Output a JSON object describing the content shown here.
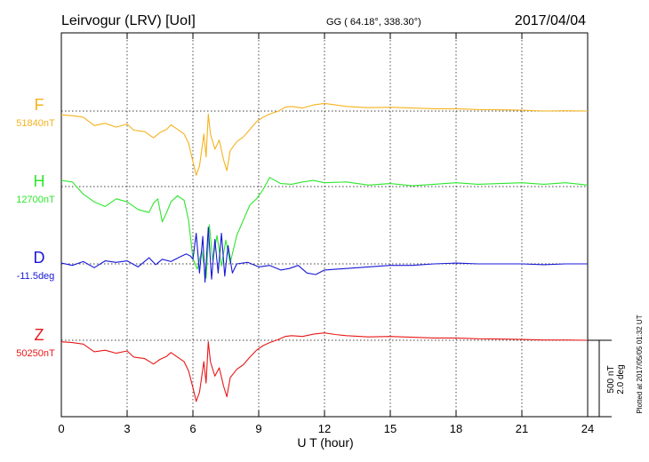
{
  "header": {
    "station": "Leirvogur (LRV)  [UoI]",
    "coords": "GG ( 64.18°, 338.30°)",
    "date": "2017/04/04"
  },
  "footnote": "Plotted at 2017/05/05 01:32 UT",
  "scale": {
    "nt": "500 nT",
    "deg": "2.0 deg"
  },
  "chart_data": {
    "type": "line",
    "xlabel": "U T (hour)",
    "xlim": [
      0,
      24
    ],
    "xticks": [
      0,
      3,
      6,
      9,
      12,
      15,
      18,
      21,
      24
    ],
    "grid": true,
    "series": [
      {
        "name": "F",
        "baseline_label": "51840nT",
        "color": "#f5b21e",
        "points": [
          [
            0,
            -25
          ],
          [
            0.5,
            -30
          ],
          [
            1,
            -40
          ],
          [
            1.5,
            -95
          ],
          [
            2,
            -80
          ],
          [
            2.5,
            -105
          ],
          [
            3,
            -85
          ],
          [
            3.3,
            -125
          ],
          [
            3.8,
            -135
          ],
          [
            4.2,
            -175
          ],
          [
            4.5,
            -140
          ],
          [
            4.8,
            -120
          ],
          [
            5,
            -90
          ],
          [
            5.3,
            -120
          ],
          [
            5.6,
            -150
          ],
          [
            5.8,
            -210
          ],
          [
            6,
            -330
          ],
          [
            6.15,
            -420
          ],
          [
            6.3,
            -360
          ],
          [
            6.5,
            -150
          ],
          [
            6.6,
            -300
          ],
          [
            6.7,
            -20
          ],
          [
            6.8,
            -150
          ],
          [
            7,
            -250
          ],
          [
            7.2,
            -190
          ],
          [
            7.4,
            -320
          ],
          [
            7.55,
            -390
          ],
          [
            7.7,
            -260
          ],
          [
            8,
            -200
          ],
          [
            8.3,
            -170
          ],
          [
            8.6,
            -120
          ],
          [
            8.9,
            -70
          ],
          [
            9.2,
            -40
          ],
          [
            9.5,
            -20
          ],
          [
            9.9,
            0
          ],
          [
            10.2,
            25
          ],
          [
            10.5,
            30
          ],
          [
            11,
            20
          ],
          [
            11.5,
            40
          ],
          [
            12,
            50
          ],
          [
            12.5,
            40
          ],
          [
            13,
            30
          ],
          [
            14,
            22
          ],
          [
            15,
            25
          ],
          [
            16,
            20
          ],
          [
            17,
            15
          ],
          [
            18,
            15
          ],
          [
            19,
            10
          ],
          [
            20,
            8
          ],
          [
            21,
            5
          ],
          [
            22,
            0
          ],
          [
            23,
            2
          ],
          [
            24,
            0
          ]
        ]
      },
      {
        "name": "H",
        "baseline_label": "12700nT",
        "color": "#2ee62e",
        "points": [
          [
            0,
            40
          ],
          [
            0.5,
            30
          ],
          [
            1,
            -50
          ],
          [
            1.5,
            -100
          ],
          [
            2,
            -130
          ],
          [
            2.5,
            -80
          ],
          [
            3,
            -100
          ],
          [
            3.5,
            -150
          ],
          [
            4,
            -170
          ],
          [
            4.2,
            -110
          ],
          [
            4.4,
            -80
          ],
          [
            4.6,
            -230
          ],
          [
            4.8,
            -170
          ],
          [
            5,
            -100
          ],
          [
            5.3,
            -60
          ],
          [
            5.6,
            -90
          ],
          [
            5.8,
            -220
          ],
          [
            6,
            -470
          ],
          [
            6.2,
            -540
          ],
          [
            6.4,
            -420
          ],
          [
            6.6,
            -600
          ],
          [
            6.75,
            -250
          ],
          [
            6.9,
            -480
          ],
          [
            7.1,
            -320
          ],
          [
            7.3,
            -520
          ],
          [
            7.5,
            -350
          ],
          [
            7.7,
            -500
          ],
          [
            8,
            -320
          ],
          [
            8.3,
            -220
          ],
          [
            8.6,
            -120
          ],
          [
            8.9,
            -80
          ],
          [
            9.2,
            -20
          ],
          [
            9.5,
            60
          ],
          [
            10,
            20
          ],
          [
            10.5,
            15
          ],
          [
            11,
            30
          ],
          [
            11.5,
            40
          ],
          [
            12,
            25
          ],
          [
            13,
            30
          ],
          [
            14,
            10
          ],
          [
            15,
            20
          ],
          [
            16,
            5
          ],
          [
            17,
            15
          ],
          [
            18,
            25
          ],
          [
            19,
            15
          ],
          [
            20,
            20
          ],
          [
            21,
            25
          ],
          [
            22,
            15
          ],
          [
            23,
            25
          ],
          [
            24,
            10
          ]
        ]
      },
      {
        "name": "D",
        "baseline_label": "-11.5deg",
        "color": "#1818d8",
        "points": [
          [
            0,
            5
          ],
          [
            0.5,
            -10
          ],
          [
            1,
            15
          ],
          [
            1.5,
            -25
          ],
          [
            2,
            20
          ],
          [
            2.5,
            10
          ],
          [
            3,
            20
          ],
          [
            3.5,
            -20
          ],
          [
            4,
            40
          ],
          [
            4.3,
            -5
          ],
          [
            4.6,
            30
          ],
          [
            5,
            15
          ],
          [
            5.4,
            45
          ],
          [
            5.7,
            65
          ],
          [
            5.9,
            50
          ],
          [
            6,
            30
          ],
          [
            6.15,
            200
          ],
          [
            6.3,
            -60
          ],
          [
            6.45,
            180
          ],
          [
            6.55,
            -120
          ],
          [
            6.7,
            240
          ],
          [
            6.85,
            -100
          ],
          [
            7,
            160
          ],
          [
            7.15,
            -60
          ],
          [
            7.3,
            200
          ],
          [
            7.45,
            -80
          ],
          [
            7.6,
            120
          ],
          [
            7.8,
            -60
          ],
          [
            8,
            0
          ],
          [
            8.5,
            10
          ],
          [
            9,
            -20
          ],
          [
            9.5,
            -10
          ],
          [
            10,
            -40
          ],
          [
            10.4,
            -30
          ],
          [
            10.8,
            -10
          ],
          [
            11.2,
            -60
          ],
          [
            11.6,
            -70
          ],
          [
            12,
            -40
          ],
          [
            13,
            -30
          ],
          [
            14,
            -20
          ],
          [
            15,
            -10
          ],
          [
            16,
            -10
          ],
          [
            17,
            0
          ],
          [
            18,
            5
          ],
          [
            19,
            0
          ],
          [
            20,
            0
          ],
          [
            21,
            0
          ],
          [
            22,
            -5
          ],
          [
            23,
            0
          ],
          [
            24,
            0
          ]
        ]
      },
      {
        "name": "Z",
        "baseline_label": "50250nT",
        "color": "#e81818",
        "points": [
          [
            0,
            -10
          ],
          [
            0.5,
            -15
          ],
          [
            1,
            -25
          ],
          [
            1.5,
            -75
          ],
          [
            2,
            -65
          ],
          [
            2.5,
            -85
          ],
          [
            3,
            -70
          ],
          [
            3.3,
            -110
          ],
          [
            3.8,
            -120
          ],
          [
            4.2,
            -155
          ],
          [
            4.5,
            -125
          ],
          [
            4.8,
            -105
          ],
          [
            5,
            -80
          ],
          [
            5.3,
            -110
          ],
          [
            5.6,
            -140
          ],
          [
            5.8,
            -200
          ],
          [
            6,
            -310
          ],
          [
            6.15,
            -400
          ],
          [
            6.3,
            -340
          ],
          [
            6.5,
            -140
          ],
          [
            6.6,
            -280
          ],
          [
            6.7,
            -10
          ],
          [
            6.8,
            -140
          ],
          [
            7,
            -235
          ],
          [
            7.2,
            -180
          ],
          [
            7.4,
            -300
          ],
          [
            7.55,
            -370
          ],
          [
            7.7,
            -245
          ],
          [
            8,
            -190
          ],
          [
            8.3,
            -160
          ],
          [
            8.6,
            -110
          ],
          [
            8.9,
            -65
          ],
          [
            9.2,
            -35
          ],
          [
            9.5,
            -15
          ],
          [
            9.9,
            5
          ],
          [
            10.2,
            25
          ],
          [
            10.5,
            30
          ],
          [
            11,
            25
          ],
          [
            11.5,
            40
          ],
          [
            12,
            48
          ],
          [
            12.5,
            38
          ],
          [
            13,
            30
          ],
          [
            14,
            22
          ],
          [
            15,
            25
          ],
          [
            16,
            20
          ],
          [
            17,
            15
          ],
          [
            18,
            15
          ],
          [
            19,
            10
          ],
          [
            20,
            8
          ],
          [
            21,
            5
          ],
          [
            22,
            2
          ],
          [
            23,
            2
          ],
          [
            24,
            0
          ]
        ]
      }
    ]
  }
}
